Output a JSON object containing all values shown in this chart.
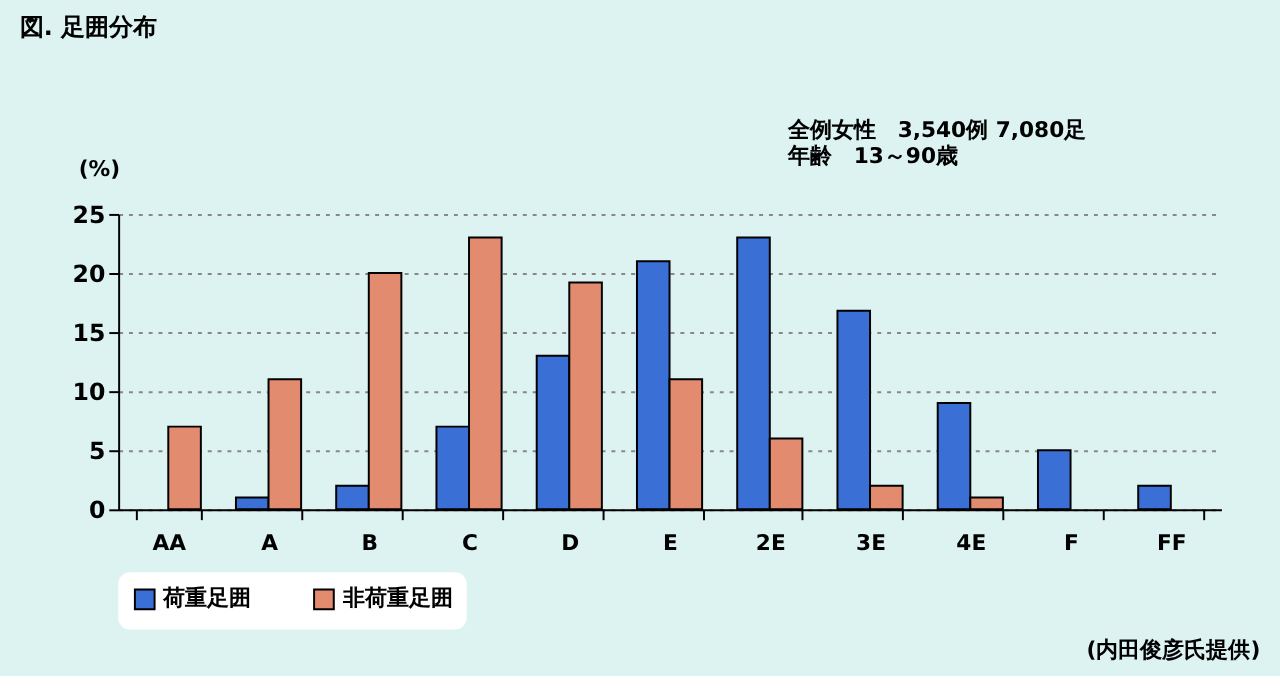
{
  "chart_data": {
    "type": "bar",
    "title": "図. 足囲分布",
    "ylabel": "(%)",
    "categories": [
      "AA",
      "A",
      "B",
      "C",
      "D",
      "E",
      "2E",
      "3E",
      "4E",
      "F",
      "FF"
    ],
    "series": [
      {
        "name": "荷重足囲",
        "color": "#3a6fd6",
        "values": [
          null,
          1,
          2,
          7,
          13,
          21,
          23,
          16.8,
          9,
          5,
          2
        ]
      },
      {
        "name": "非荷重足囲",
        "color": "#e38b6f",
        "values": [
          7,
          11,
          20,
          23,
          19.2,
          11,
          6,
          2,
          1,
          null,
          null
        ]
      }
    ],
    "ylim": [
      0,
      25
    ],
    "yticks": [
      0,
      5,
      10,
      15,
      20,
      25
    ],
    "grid": "y",
    "legend": "bottom",
    "annotations": [
      "全例女性　3,540例 7,080足",
      "年齢　13～90歳",
      "(内田俊彦氏提供)"
    ]
  }
}
